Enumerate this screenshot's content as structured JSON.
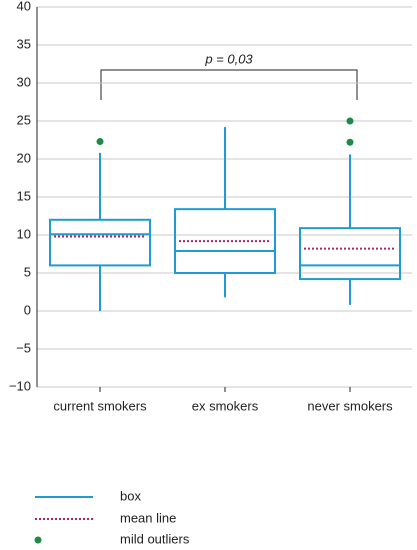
{
  "chart_data": {
    "type": "box",
    "categories": [
      "current smokers",
      "ex smokers",
      "never smokers"
    ],
    "boxes": [
      {
        "min": 0,
        "q1": 6,
        "median": 10.1,
        "q3": 12,
        "max": 20.8,
        "mean": 9.8,
        "outliers": [
          22.3
        ]
      },
      {
        "min": 1.8,
        "q1": 5,
        "median": 7.9,
        "q3": 13.4,
        "max": 24.2,
        "mean": 9.2,
        "outliers": []
      },
      {
        "min": 0.8,
        "q1": 4.2,
        "median": 6,
        "q3": 10.9,
        "max": 20.6,
        "mean": 8.2,
        "outliers": [
          25,
          22.2
        ]
      }
    ],
    "box_color": "#1f9ad3",
    "mean_color": "#b0207a",
    "outlier_color": "#1e8a48",
    "ylim": [
      -10,
      40
    ],
    "yticks": [
      {
        "value": -10,
        "label": "−10"
      },
      {
        "value": -5,
        "label": "−5"
      },
      0,
      5,
      10,
      15,
      20,
      25,
      30,
      35,
      40
    ],
    "grid": true,
    "annotation": "p = 0,03",
    "legend_labels": [
      "box",
      "mean line",
      "mild outliers"
    ]
  }
}
